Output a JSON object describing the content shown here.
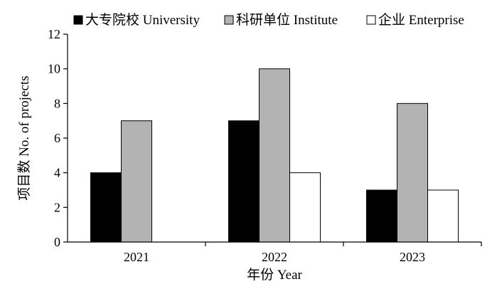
{
  "chart_data": {
    "type": "bar",
    "categories": [
      "2021",
      "2022",
      "2023"
    ],
    "series": [
      {
        "name": "大专院校 University",
        "values": [
          4,
          7,
          3
        ],
        "color": "#000000"
      },
      {
        "name": "科研单位 Institute",
        "values": [
          7,
          10,
          8
        ],
        "color": "#b3b3b3"
      },
      {
        "name": "企业 Enterprise",
        "values": [
          0,
          4,
          3
        ],
        "color": "#ffffff"
      }
    ],
    "xlabel": "年份 Year",
    "ylabel": "项目数 No. of projects",
    "ylim": [
      0,
      12
    ],
    "yticks": [
      "0",
      "2",
      "4",
      "6",
      "8",
      "10",
      "12"
    ],
    "grid": false,
    "legend_position": "top"
  }
}
